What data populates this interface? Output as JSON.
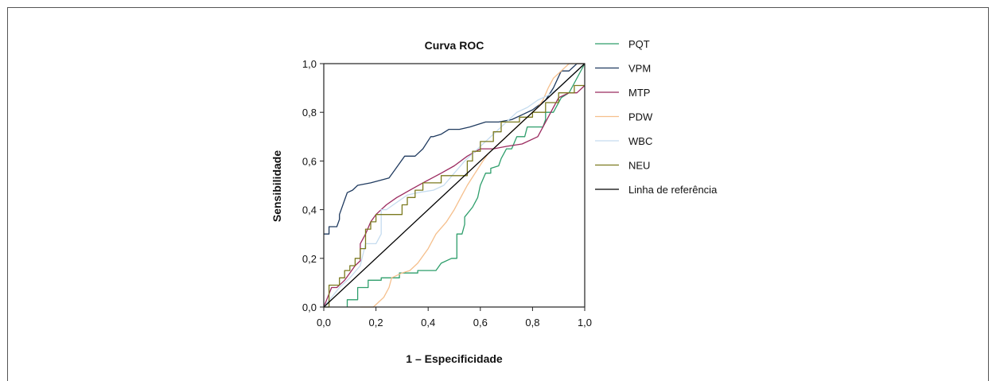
{
  "chart_data": {
    "type": "line",
    "title": "Curva ROC",
    "xlabel": "1 – Especificidade",
    "ylabel": "Sensibilidade",
    "xlim": [
      0,
      1
    ],
    "ylim": [
      0,
      1
    ],
    "xticks": [
      "0,0",
      "0,2",
      "0,4",
      "0,6",
      "0,8",
      "1,0"
    ],
    "yticks": [
      "0,0",
      "0,2",
      "0,4",
      "0,6",
      "0,8",
      "1,0"
    ],
    "legend_position": "right",
    "series": [
      {
        "name": "PQT",
        "color": "#2e9e6b",
        "x": [
          0.09,
          0.09,
          0.13,
          0.13,
          0.17,
          0.17,
          0.22,
          0.22,
          0.29,
          0.29,
          0.36,
          0.36,
          0.43,
          0.45,
          0.49,
          0.51,
          0.51,
          0.53,
          0.54,
          0.54,
          0.57,
          0.59,
          0.6,
          0.62,
          0.64,
          0.64,
          0.67,
          0.68,
          0.7,
          0.72,
          0.74,
          0.77,
          0.78,
          0.84,
          0.85,
          0.85,
          0.88,
          0.91,
          0.94,
          0.96,
          1.0
        ],
        "y": [
          0.0,
          0.03,
          0.03,
          0.08,
          0.08,
          0.11,
          0.11,
          0.12,
          0.12,
          0.14,
          0.14,
          0.15,
          0.15,
          0.18,
          0.2,
          0.2,
          0.3,
          0.3,
          0.34,
          0.37,
          0.41,
          0.45,
          0.5,
          0.55,
          0.55,
          0.57,
          0.58,
          0.61,
          0.65,
          0.65,
          0.7,
          0.7,
          0.74,
          0.74,
          0.77,
          0.8,
          0.8,
          0.86,
          0.88,
          0.92,
          1.0
        ]
      },
      {
        "name": "VPM",
        "color": "#1f3a5f",
        "x": [
          0.0,
          0.02,
          0.02,
          0.05,
          0.06,
          0.06,
          0.08,
          0.09,
          0.11,
          0.13,
          0.18,
          0.25,
          0.27,
          0.31,
          0.35,
          0.38,
          0.41,
          0.42,
          0.45,
          0.48,
          0.52,
          0.56,
          0.59,
          0.62,
          0.67,
          0.72,
          0.76,
          0.8,
          0.85,
          0.88,
          0.91,
          0.94,
          0.97,
          1.0
        ],
        "y": [
          0.3,
          0.3,
          0.33,
          0.33,
          0.36,
          0.38,
          0.44,
          0.47,
          0.48,
          0.5,
          0.51,
          0.53,
          0.56,
          0.62,
          0.62,
          0.65,
          0.7,
          0.7,
          0.71,
          0.73,
          0.73,
          0.74,
          0.75,
          0.76,
          0.76,
          0.77,
          0.79,
          0.81,
          0.85,
          0.9,
          0.97,
          0.97,
          1.0,
          1.0
        ]
      },
      {
        "name": "MTP",
        "color": "#9b2a5f",
        "x": [
          0.0,
          0.03,
          0.05,
          0.08,
          0.1,
          0.12,
          0.14,
          0.14,
          0.16,
          0.18,
          0.2,
          0.24,
          0.28,
          0.33,
          0.38,
          0.45,
          0.5,
          0.55,
          0.6,
          0.65,
          0.7,
          0.76,
          0.82,
          0.86,
          0.9,
          0.94,
          0.97,
          1.0
        ],
        "y": [
          0.0,
          0.08,
          0.08,
          0.11,
          0.14,
          0.17,
          0.19,
          0.26,
          0.3,
          0.35,
          0.38,
          0.42,
          0.45,
          0.48,
          0.51,
          0.55,
          0.58,
          0.62,
          0.65,
          0.65,
          0.66,
          0.67,
          0.7,
          0.78,
          0.86,
          0.88,
          0.88,
          0.91
        ]
      },
      {
        "name": "PDW",
        "color": "#f5bf8c",
        "x": [
          0.14,
          0.19,
          0.21,
          0.23,
          0.25,
          0.26,
          0.3,
          0.33,
          0.36,
          0.4,
          0.43,
          0.47,
          0.5,
          0.53,
          0.55,
          0.58,
          0.61,
          0.63,
          0.66,
          0.68,
          0.7,
          0.73,
          0.76,
          0.79,
          0.82,
          0.84,
          0.86,
          0.88,
          0.91,
          0.94,
          0.97,
          1.0
        ],
        "y": [
          0.0,
          0.0,
          0.02,
          0.04,
          0.08,
          0.12,
          0.14,
          0.15,
          0.18,
          0.24,
          0.3,
          0.35,
          0.4,
          0.46,
          0.5,
          0.55,
          0.6,
          0.63,
          0.66,
          0.68,
          0.7,
          0.73,
          0.76,
          0.79,
          0.82,
          0.85,
          0.9,
          0.94,
          0.97,
          1.0,
          1.0,
          1.0
        ]
      },
      {
        "name": "WBC",
        "color": "#c5dcef",
        "x": [
          0.0,
          0.06,
          0.1,
          0.14,
          0.16,
          0.2,
          0.22,
          0.22,
          0.24,
          0.28,
          0.32,
          0.36,
          0.42,
          0.46,
          0.5,
          0.54,
          0.58,
          0.62,
          0.66,
          0.7,
          0.74,
          0.78,
          0.82,
          0.86,
          0.9,
          0.94,
          0.97,
          1.0
        ],
        "y": [
          0.0,
          0.08,
          0.12,
          0.17,
          0.26,
          0.26,
          0.3,
          0.4,
          0.4,
          0.43,
          0.46,
          0.47,
          0.48,
          0.5,
          0.55,
          0.6,
          0.64,
          0.68,
          0.72,
          0.76,
          0.8,
          0.82,
          0.85,
          0.87,
          0.9,
          0.94,
          0.97,
          1.0
        ]
      },
      {
        "name": "NEU",
        "color": "#7b7a1f",
        "x": [
          0.0,
          0.02,
          0.02,
          0.06,
          0.06,
          0.08,
          0.08,
          0.1,
          0.1,
          0.12,
          0.12,
          0.14,
          0.14,
          0.16,
          0.16,
          0.18,
          0.18,
          0.2,
          0.2,
          0.3,
          0.3,
          0.32,
          0.32,
          0.35,
          0.35,
          0.38,
          0.38,
          0.45,
          0.45,
          0.55,
          0.55,
          0.57,
          0.57,
          0.6,
          0.6,
          0.65,
          0.65,
          0.68,
          0.68,
          0.75,
          0.75,
          0.8,
          0.8,
          0.85,
          0.85,
          0.9,
          0.9,
          0.96,
          0.96,
          1.0
        ],
        "y": [
          0.0,
          0.0,
          0.09,
          0.09,
          0.12,
          0.12,
          0.15,
          0.15,
          0.17,
          0.17,
          0.2,
          0.2,
          0.24,
          0.24,
          0.32,
          0.32,
          0.35,
          0.35,
          0.38,
          0.38,
          0.42,
          0.42,
          0.45,
          0.45,
          0.48,
          0.48,
          0.51,
          0.51,
          0.54,
          0.54,
          0.6,
          0.6,
          0.64,
          0.64,
          0.68,
          0.68,
          0.72,
          0.72,
          0.76,
          0.76,
          0.78,
          0.78,
          0.8,
          0.8,
          0.84,
          0.84,
          0.88,
          0.88,
          0.91,
          0.91
        ]
      },
      {
        "name": "Linha de referência",
        "color": "#000000",
        "x": [
          0.0,
          1.0
        ],
        "y": [
          0.0,
          1.0
        ]
      }
    ]
  }
}
